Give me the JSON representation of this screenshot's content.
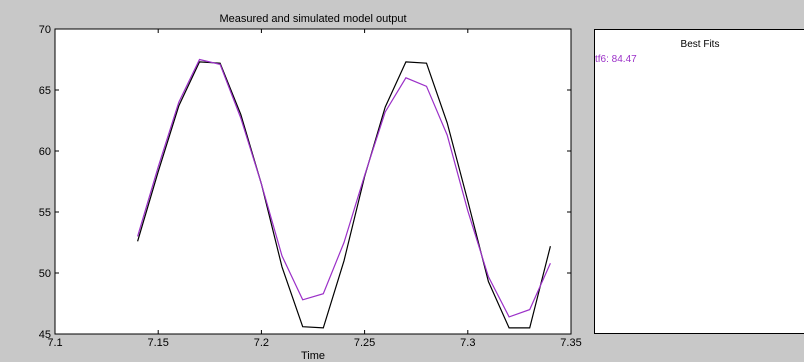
{
  "chart_data": {
    "type": "line",
    "title": "Measured and simulated model output",
    "xlabel": "Time",
    "ylabel": "",
    "xlim": [
      7.1,
      7.35
    ],
    "ylim": [
      45,
      70
    ],
    "xticks": [
      7.1,
      7.15,
      7.2,
      7.25,
      7.3,
      7.35
    ],
    "yticks": [
      45,
      50,
      55,
      60,
      65,
      70
    ],
    "grid": false,
    "series": [
      {
        "color": "#000000",
        "x": [
          7.14,
          7.15,
          7.16,
          7.17,
          7.18,
          7.19,
          7.2,
          7.21,
          7.22,
          7.23,
          7.24,
          7.25,
          7.26,
          7.27,
          7.28,
          7.29,
          7.3,
          7.31,
          7.32,
          7.33,
          7.34
        ],
        "y": [
          52.6,
          58.3,
          63.7,
          67.3,
          67.2,
          63.0,
          57.3,
          50.5,
          45.6,
          45.5,
          51.0,
          57.9,
          63.6,
          67.3,
          67.2,
          62.3,
          55.9,
          49.3,
          45.5,
          45.5,
          52.2
        ]
      },
      {
        "color": "#9b30c8",
        "x": [
          7.14,
          7.15,
          7.16,
          7.17,
          7.18,
          7.19,
          7.2,
          7.21,
          7.22,
          7.23,
          7.24,
          7.25,
          7.26,
          7.27,
          7.28,
          7.29,
          7.3,
          7.31,
          7.32,
          7.33,
          7.34
        ],
        "y": [
          53.0,
          58.7,
          64.0,
          67.5,
          67.1,
          62.7,
          57.3,
          51.4,
          47.8,
          48.3,
          52.5,
          58.0,
          63.2,
          66.0,
          65.3,
          61.3,
          55.1,
          49.7,
          46.4,
          47.0,
          50.8
        ]
      }
    ]
  },
  "panel": {
    "title": "Best Fits",
    "entries": [
      {
        "label": "tf6: 84.47",
        "color": "#9b30c8"
      }
    ]
  }
}
